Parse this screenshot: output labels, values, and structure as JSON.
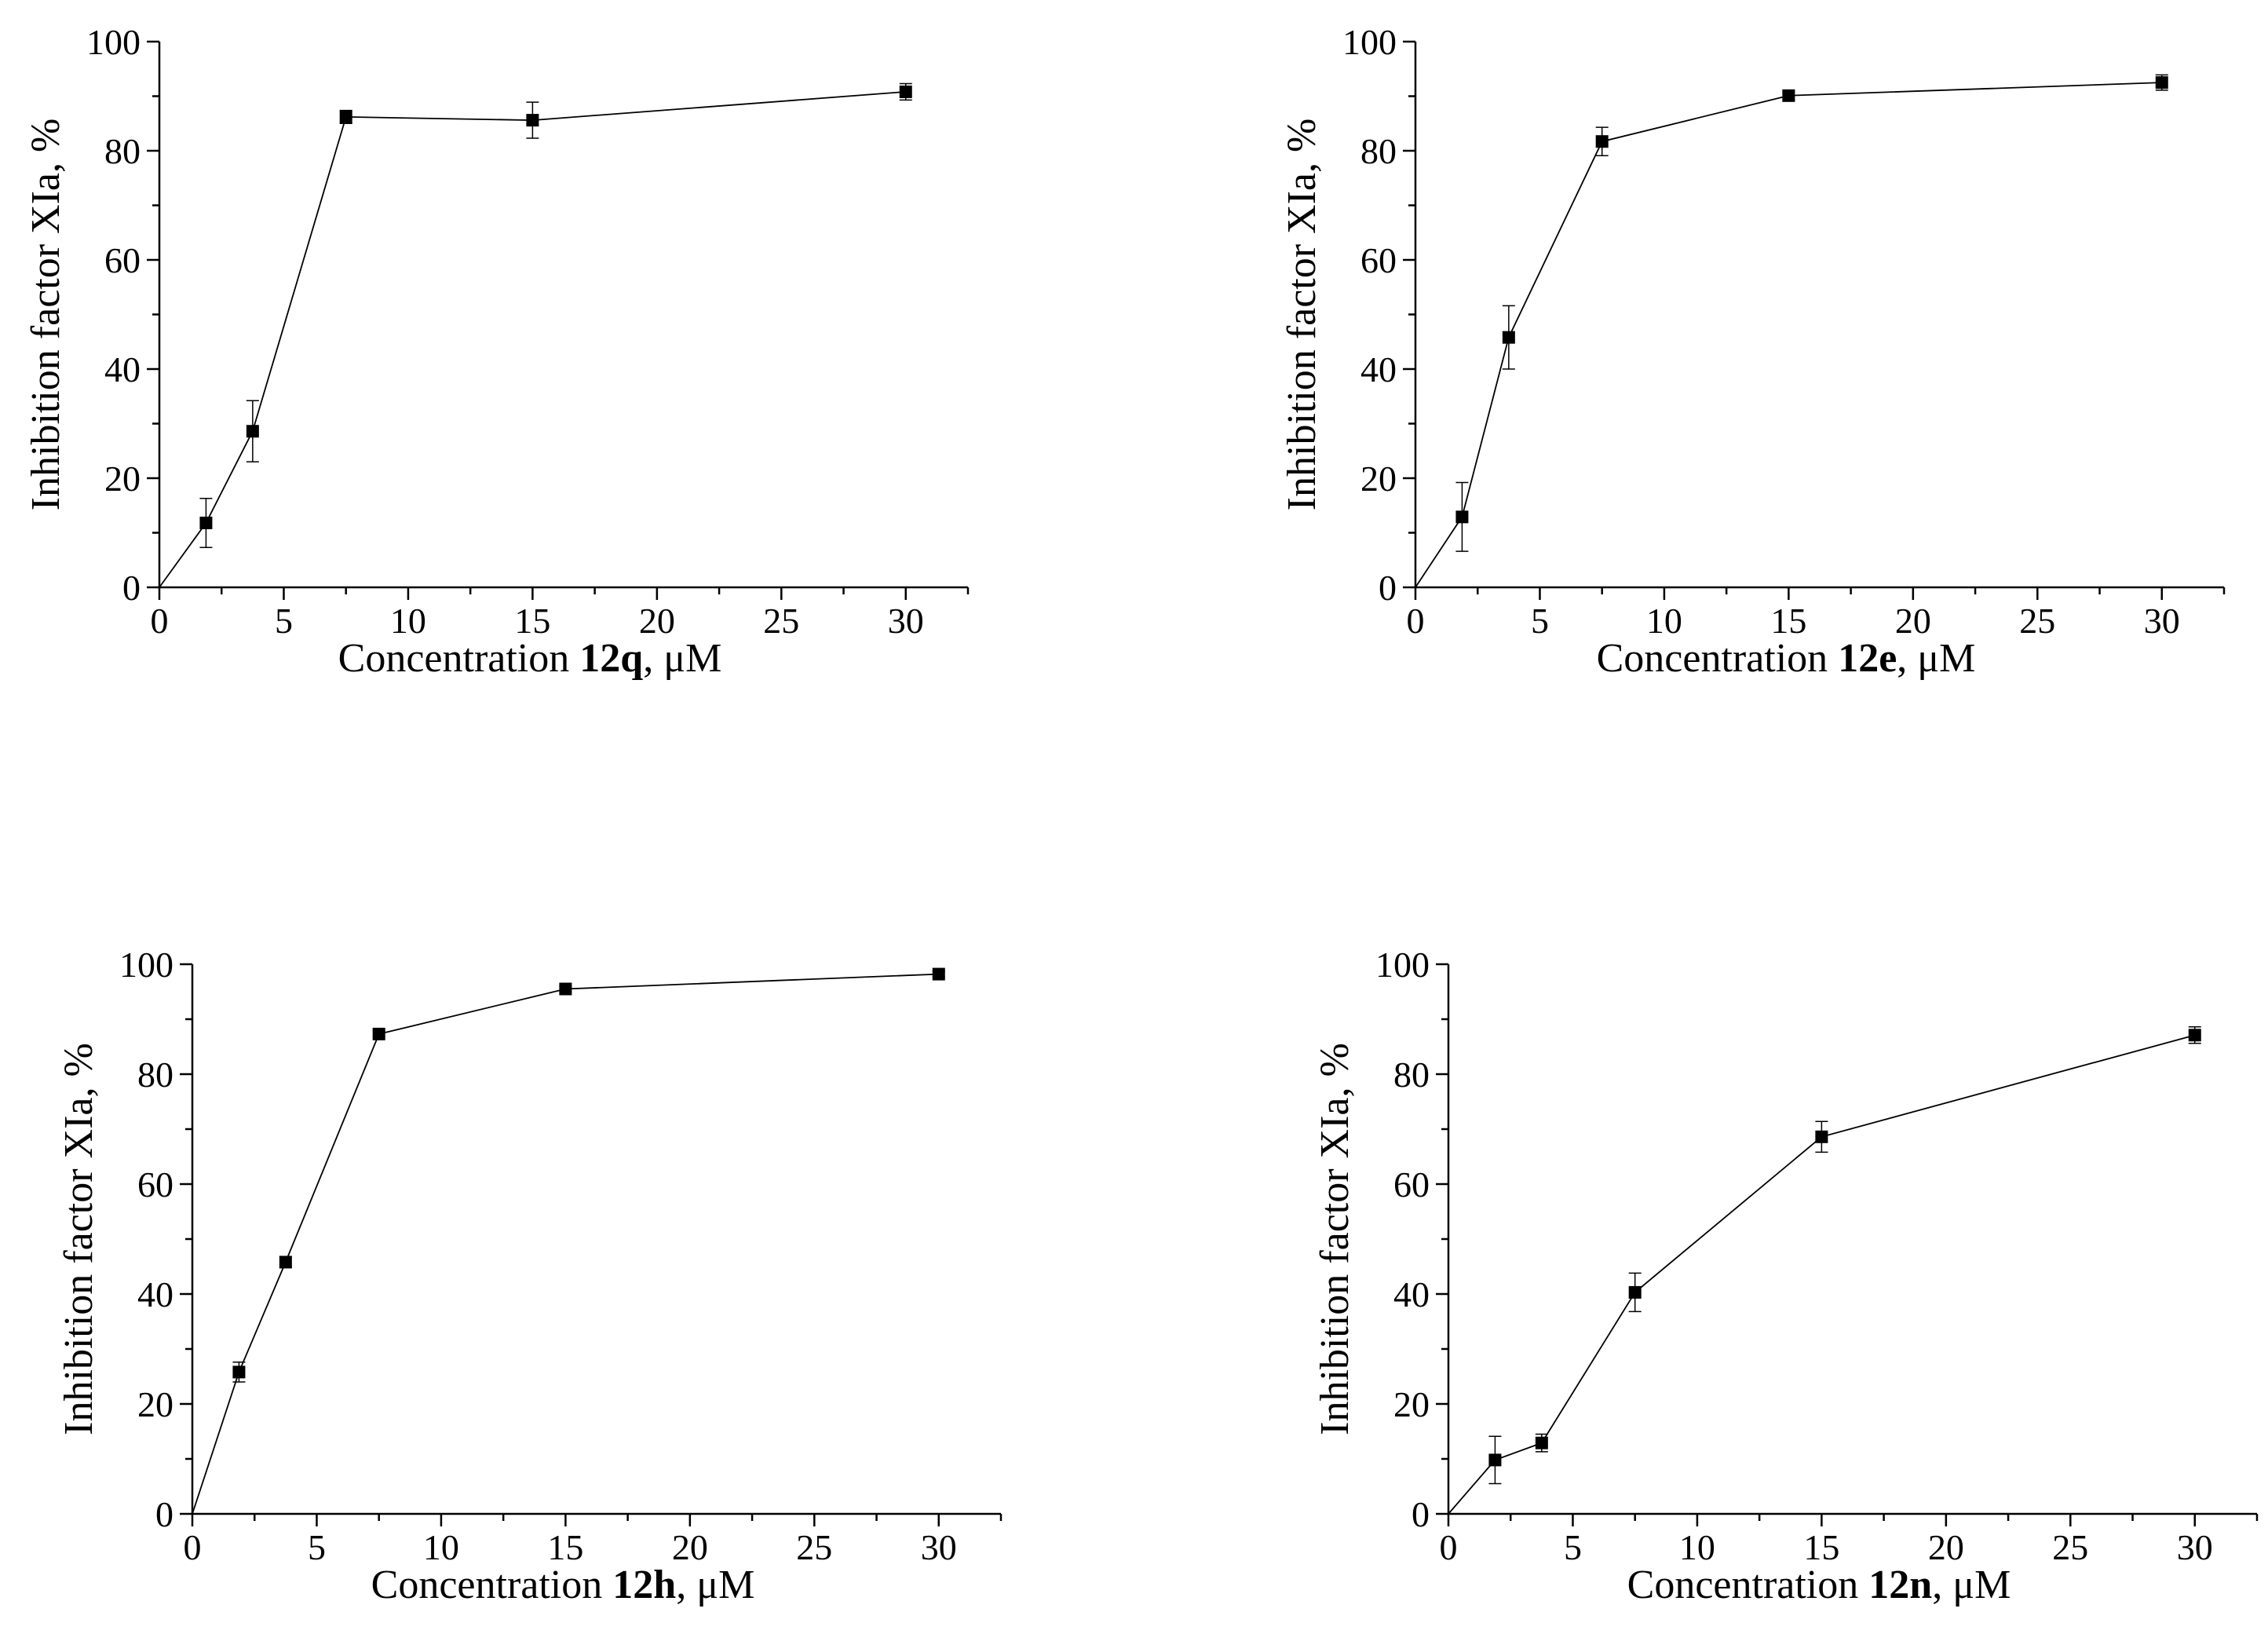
{
  "chart_data": [
    {
      "type": "line",
      "compound": "12q",
      "xlabel_prefix": "Concentration ",
      "xlabel_suffix": ", μM",
      "ylabel": "Inhibition factor XIa, %",
      "xlim": [
        0,
        32.5
      ],
      "ylim": [
        0,
        100
      ],
      "xticks": [
        0,
        5,
        10,
        15,
        20,
        25,
        30
      ],
      "yticks": [
        0,
        20,
        40,
        60,
        80,
        100
      ],
      "series": [
        {
          "name": "12q",
          "x": [
            0,
            1.875,
            3.75,
            7.5,
            15,
            30
          ],
          "y": [
            0,
            11.8,
            28.6,
            86.2,
            85.6,
            90.8
          ],
          "err": [
            0,
            4.5,
            5.6,
            1.2,
            3.3,
            1.5
          ]
        }
      ]
    },
    {
      "type": "line",
      "compound": "12e",
      "xlabel_prefix": "Concentration ",
      "xlabel_suffix": ", μM",
      "ylabel": "Inhibition factor XIa, %",
      "xlim": [
        0,
        32.5
      ],
      "ylim": [
        0,
        100
      ],
      "xticks": [
        0,
        5,
        10,
        15,
        20,
        25,
        30
      ],
      "yticks": [
        0,
        20,
        40,
        60,
        80,
        100
      ],
      "series": [
        {
          "name": "12e",
          "x": [
            0,
            1.875,
            3.75,
            7.5,
            15,
            30
          ],
          "y": [
            0,
            12.9,
            45.8,
            81.7,
            90.1,
            92.5
          ],
          "err": [
            0,
            6.3,
            5.8,
            2.6,
            0.8,
            1.4
          ]
        }
      ]
    },
    {
      "type": "line",
      "compound": "12h",
      "xlabel_prefix": "Concentration ",
      "xlabel_suffix": ", μM",
      "ylabel": "Inhibition factor XIa, %",
      "xlim": [
        0,
        32.5
      ],
      "ylim": [
        0,
        100
      ],
      "xticks": [
        0,
        5,
        10,
        15,
        20,
        25,
        30
      ],
      "yticks": [
        0,
        20,
        40,
        60,
        80,
        100
      ],
      "series": [
        {
          "name": "12h",
          "x": [
            0,
            1.875,
            3.75,
            7.5,
            15,
            30
          ],
          "y": [
            0,
            25.8,
            45.8,
            87.3,
            95.5,
            98.2
          ],
          "err": [
            0,
            1.8,
            1.0,
            0.5,
            0.5,
            0.5
          ]
        }
      ]
    },
    {
      "type": "line",
      "compound": "12n",
      "xlabel_prefix": "Concentration ",
      "xlabel_suffix": ", μM",
      "ylabel": "Inhibition factor XIa, %",
      "xlim": [
        0,
        32.5
      ],
      "ylim": [
        0,
        100
      ],
      "xticks": [
        0,
        5,
        10,
        15,
        20,
        25,
        30
      ],
      "yticks": [
        0,
        20,
        40,
        60,
        80,
        100
      ],
      "series": [
        {
          "name": "12n",
          "x": [
            0,
            1.875,
            3.75,
            7.5,
            15,
            30
          ],
          "y": [
            0,
            9.8,
            12.9,
            40.3,
            68.6,
            87.1
          ],
          "err": [
            0,
            4.3,
            1.6,
            3.5,
            2.8,
            1.5
          ]
        }
      ]
    }
  ]
}
